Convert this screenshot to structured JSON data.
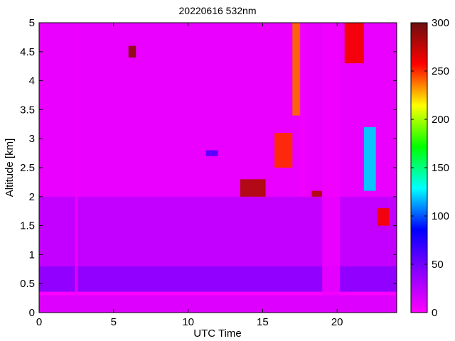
{
  "chart_data": {
    "type": "heatmap",
    "title": "20220616 532nm",
    "xlabel": "UTC Time",
    "ylabel": "Altitude [km]",
    "xlim": [
      0,
      24
    ],
    "ylim": [
      0,
      5
    ],
    "x_ticks": [
      0,
      5,
      10,
      15,
      20
    ],
    "y_ticks": [
      0,
      0.5,
      1,
      1.5,
      2,
      2.5,
      3,
      3.5,
      4,
      4.5,
      5
    ],
    "colorbar": {
      "range": [
        0,
        300
      ],
      "ticks": [
        0,
        50,
        100,
        150,
        200,
        250,
        300
      ],
      "colormap": [
        "#ff00ff",
        "#8a00ff",
        "#0000ff",
        "#00ffff",
        "#00ff00",
        "#ffff00",
        "#ff0000",
        "#6b0f0f"
      ]
    },
    "background_levels": [
      {
        "alt_from": 0,
        "alt_to": 0.3,
        "value": 12
      },
      {
        "alt_from": 0.3,
        "alt_to": 0.36,
        "value": 0
      },
      {
        "alt_from": 0.36,
        "alt_to": 0.8,
        "value": 40
      },
      {
        "alt_from": 0.8,
        "alt_to": 2.0,
        "value": 22
      },
      {
        "alt_from": 2.0,
        "alt_to": 5.0,
        "value": 8
      }
    ],
    "features": [
      {
        "type": "cloud",
        "t_from": 11.2,
        "t_to": 12.0,
        "alt_from": 2.7,
        "alt_to": 2.8,
        "value": 60
      },
      {
        "type": "cloud",
        "t_from": 6.0,
        "t_to": 6.5,
        "alt_from": 4.4,
        "alt_to": 4.6,
        "value": 290
      },
      {
        "type": "cloud",
        "t_from": 13.5,
        "t_to": 15.2,
        "alt_from": 2.0,
        "alt_to": 2.3,
        "value": 280
      },
      {
        "type": "cloud",
        "t_from": 15.8,
        "t_to": 17.0,
        "alt_from": 2.5,
        "alt_to": 3.1,
        "value": 250
      },
      {
        "type": "cloud",
        "t_from": 17.0,
        "t_to": 17.6,
        "alt_from": 3.4,
        "alt_to": 5.0,
        "value": 240
      },
      {
        "type": "cloud",
        "t_from": 18.3,
        "t_to": 19.0,
        "alt_from": 2.0,
        "alt_to": 2.1,
        "value": 280
      },
      {
        "type": "cloud",
        "t_from": 20.5,
        "t_to": 21.8,
        "alt_from": 4.3,
        "alt_to": 5.0,
        "value": 260
      },
      {
        "type": "cloud",
        "t_from": 22.7,
        "t_to": 23.5,
        "alt_from": 1.5,
        "alt_to": 1.8,
        "value": 260
      },
      {
        "type": "cloud",
        "t_from": 21.8,
        "t_to": 22.6,
        "alt_from": 2.1,
        "alt_to": 3.2,
        "value": 120
      },
      {
        "type": "attenuated",
        "t_from": 19.0,
        "t_to": 20.2,
        "alt_from": 0.3,
        "alt_to": 5.0,
        "value": 5
      },
      {
        "type": "attenuated",
        "t_from": 17.5,
        "t_to": 17.9,
        "alt_from": 2.0,
        "alt_to": 5.0,
        "value": 5
      },
      {
        "type": "attenuated",
        "t_from": 2.4,
        "t_to": 2.6,
        "alt_from": 0.3,
        "alt_to": 5.0,
        "value": 5
      }
    ]
  }
}
